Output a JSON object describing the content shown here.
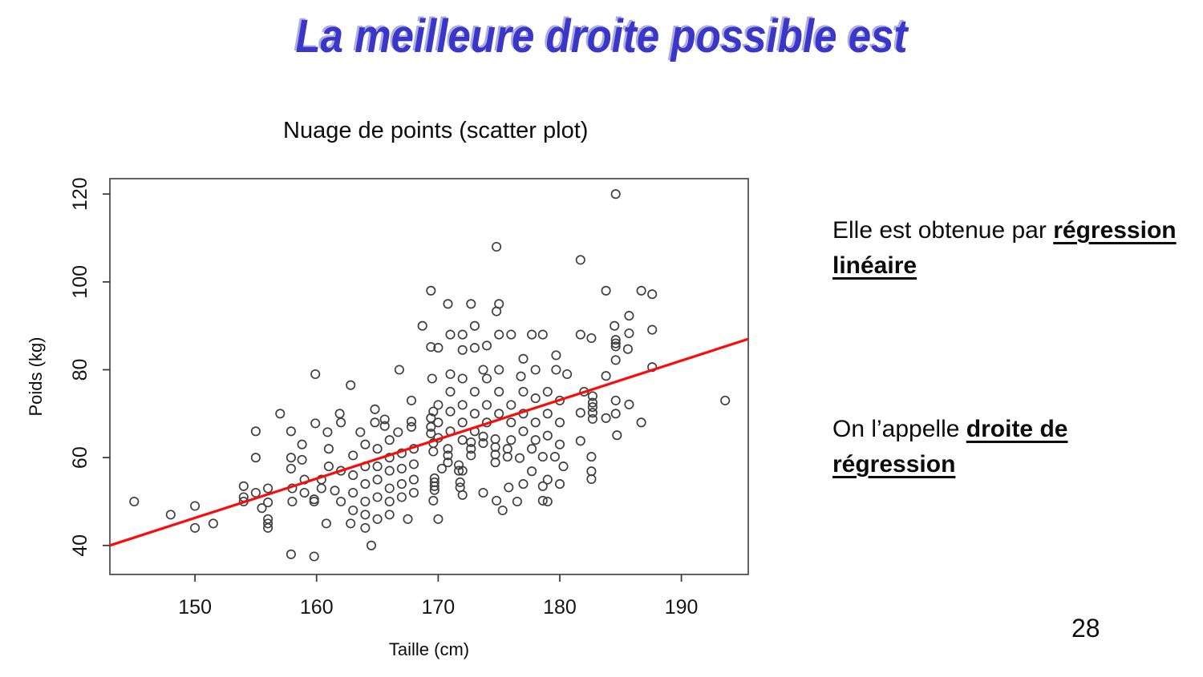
{
  "title": {
    "text": "La meilleure droite possible est",
    "color": "#3a36c8"
  },
  "page_number": "28",
  "notes": [
    {
      "text": "Elle est obtenue par",
      "emphasis": "régression linéaire"
    },
    {
      "text": "On l’appelle",
      "emphasis": "droite de régression"
    }
  ],
  "chart_data": {
    "type": "scatter",
    "title": "Nuage de points (scatter plot)",
    "xlabel": "Taille (cm)",
    "ylabel": "Poids (kg)",
    "xlim": [
      143,
      195.5
    ],
    "ylim": [
      33.4,
      123.5
    ],
    "xticks": [
      150,
      160,
      170,
      180,
      190
    ],
    "yticks": [
      40,
      60,
      80,
      100,
      120
    ],
    "grid": false,
    "legend": "none",
    "point_color": "#3f3f3f",
    "line_color": "#fb0c0c",
    "regression_line": {
      "x1": 143,
      "y1": 40,
      "x2": 195.5,
      "y2": 87
    },
    "points": [
      [
        145,
        50
      ],
      [
        148,
        47
      ],
      [
        150,
        49
      ],
      [
        150,
        44
      ],
      [
        151.5,
        45
      ],
      [
        154,
        53.5
      ],
      [
        154,
        51
      ],
      [
        154,
        50
      ],
      [
        155,
        66
      ],
      [
        155,
        60
      ],
      [
        155,
        52
      ],
      [
        155.5,
        48.5
      ],
      [
        156,
        53
      ],
      [
        156,
        49.8
      ],
      [
        156,
        46
      ],
      [
        156,
        45
      ],
      [
        156,
        44
      ],
      [
        157,
        70
      ],
      [
        157.9,
        66
      ],
      [
        157.9,
        60
      ],
      [
        157.9,
        57.5
      ],
      [
        157.9,
        38
      ],
      [
        158,
        53
      ],
      [
        158,
        50
      ],
      [
        158.8,
        63
      ],
      [
        158.8,
        59.5
      ],
      [
        159,
        55
      ],
      [
        159,
        52
      ],
      [
        159.9,
        79
      ],
      [
        159.9,
        67.8
      ],
      [
        159.8,
        50.5
      ],
      [
        159.8,
        50
      ],
      [
        159.8,
        37.5
      ],
      [
        160.4,
        55
      ],
      [
        160.4,
        53
      ],
      [
        160.8,
        45
      ],
      [
        160.9,
        65.8
      ],
      [
        161,
        62
      ],
      [
        161,
        58
      ],
      [
        161.5,
        52.5
      ],
      [
        161.9,
        70
      ],
      [
        162,
        68
      ],
      [
        162,
        57
      ],
      [
        162,
        50
      ],
      [
        162.8,
        76.5
      ],
      [
        162.8,
        45
      ],
      [
        163,
        60.5
      ],
      [
        163,
        56
      ],
      [
        163,
        52
      ],
      [
        163,
        48
      ],
      [
        163.6,
        65.8
      ],
      [
        164,
        63
      ],
      [
        164,
        58
      ],
      [
        164,
        54
      ],
      [
        164,
        50
      ],
      [
        164,
        47
      ],
      [
        164,
        44
      ],
      [
        164.5,
        40
      ],
      [
        164.8,
        71
      ],
      [
        164.8,
        68
      ],
      [
        165,
        62
      ],
      [
        165,
        58
      ],
      [
        165,
        55
      ],
      [
        165,
        51
      ],
      [
        165,
        46
      ],
      [
        165.6,
        68.7
      ],
      [
        165.6,
        67.2
      ],
      [
        166,
        64
      ],
      [
        166,
        60
      ],
      [
        166,
        57
      ],
      [
        166,
        53
      ],
      [
        166,
        50
      ],
      [
        166,
        47
      ],
      [
        166.7,
        65.8
      ],
      [
        166.8,
        80
      ],
      [
        167,
        61
      ],
      [
        167,
        57.5
      ],
      [
        167,
        54
      ],
      [
        167,
        51
      ],
      [
        167.5,
        46
      ],
      [
        167.8,
        73
      ],
      [
        167.8,
        68.2
      ],
      [
        167.8,
        67
      ],
      [
        168,
        62
      ],
      [
        168,
        58.5
      ],
      [
        168,
        55
      ],
      [
        168,
        52
      ],
      [
        168.7,
        90
      ],
      [
        169.4,
        98
      ],
      [
        169.4,
        85.2
      ],
      [
        169.5,
        78
      ],
      [
        169.6,
        70.5
      ],
      [
        169.4,
        69
      ],
      [
        169.4,
        67
      ],
      [
        169.4,
        65.5
      ],
      [
        169.6,
        63.3
      ],
      [
        169.6,
        61.4
      ],
      [
        169.7,
        55.3
      ],
      [
        169.7,
        54.4
      ],
      [
        169.7,
        53.5
      ],
      [
        169.7,
        52.6
      ],
      [
        169.6,
        50.2
      ],
      [
        170,
        85
      ],
      [
        170,
        72
      ],
      [
        170,
        68
      ],
      [
        170,
        64.5
      ],
      [
        170.3,
        57.5
      ],
      [
        170,
        46
      ],
      [
        170.8,
        95
      ],
      [
        170.8,
        62
      ],
      [
        170.8,
        60.5
      ],
      [
        170.8,
        58.9
      ],
      [
        171,
        88
      ],
      [
        171,
        79
      ],
      [
        171,
        75
      ],
      [
        171,
        70.5
      ],
      [
        171,
        66
      ],
      [
        171.7,
        58.3
      ],
      [
        171.7,
        57
      ],
      [
        171.8,
        54.4
      ],
      [
        171.8,
        53.2
      ],
      [
        172,
        88
      ],
      [
        172,
        84.5
      ],
      [
        172,
        78
      ],
      [
        172,
        72
      ],
      [
        172,
        68
      ],
      [
        172,
        64
      ],
      [
        172.7,
        95
      ],
      [
        172.7,
        63.5
      ],
      [
        172.7,
        62
      ],
      [
        172.7,
        60.5
      ],
      [
        172,
        57
      ],
      [
        172,
        51.5
      ],
      [
        173,
        90
      ],
      [
        173,
        85
      ],
      [
        173,
        75
      ],
      [
        173,
        70
      ],
      [
        173,
        66
      ],
      [
        173.7,
        80
      ],
      [
        173.7,
        64.8
      ],
      [
        173.7,
        63.3
      ],
      [
        173.7,
        52
      ],
      [
        174,
        85.5
      ],
      [
        174,
        78
      ],
      [
        174,
        72
      ],
      [
        174,
        68
      ],
      [
        174.7,
        64.2
      ],
      [
        174.7,
        62.4
      ],
      [
        174.7,
        60.7
      ],
      [
        174.7,
        58.9
      ],
      [
        174.8,
        108
      ],
      [
        174.8,
        93.3
      ],
      [
        174.8,
        50.2
      ],
      [
        175,
        95
      ],
      [
        175,
        88
      ],
      [
        175,
        80
      ],
      [
        175,
        75
      ],
      [
        175,
        70
      ],
      [
        175.7,
        62
      ],
      [
        175.7,
        60.2
      ],
      [
        175.8,
        53.2
      ],
      [
        175.3,
        48
      ],
      [
        176,
        88
      ],
      [
        176,
        72
      ],
      [
        176,
        68
      ],
      [
        176,
        64
      ],
      [
        176.7,
        59.9
      ],
      [
        176.8,
        78.5
      ],
      [
        176.5,
        50
      ],
      [
        177,
        82.5
      ],
      [
        177,
        75
      ],
      [
        177,
        70
      ],
      [
        177,
        66
      ],
      [
        177.7,
        88
      ],
      [
        177.7,
        62
      ],
      [
        177.7,
        56.9
      ],
      [
        177,
        54
      ],
      [
        178,
        80
      ],
      [
        178,
        73.5
      ],
      [
        178,
        68
      ],
      [
        178,
        64
      ],
      [
        178.6,
        88
      ],
      [
        178.6,
        60.2
      ],
      [
        178.6,
        53.5
      ],
      [
        178.6,
        50.2
      ],
      [
        179,
        75
      ],
      [
        179,
        70
      ],
      [
        179,
        65
      ],
      [
        179,
        55
      ],
      [
        179.7,
        83.3
      ],
      [
        179.7,
        80
      ],
      [
        179.6,
        60.2
      ],
      [
        179,
        50
      ],
      [
        180,
        73
      ],
      [
        180,
        68
      ],
      [
        180,
        63
      ],
      [
        180.3,
        58
      ],
      [
        180.6,
        79
      ],
      [
        180,
        54
      ],
      [
        181.7,
        105
      ],
      [
        181.7,
        88
      ],
      [
        181.7,
        70.2
      ],
      [
        181.7,
        63.8
      ],
      [
        182,
        75
      ],
      [
        182.6,
        87.2
      ],
      [
        182.6,
        60.2
      ],
      [
        182.6,
        56.9
      ],
      [
        182.6,
        55.1
      ],
      [
        182.7,
        74
      ],
      [
        182.7,
        72.5
      ],
      [
        182.7,
        71.5
      ],
      [
        182.7,
        70.2
      ],
      [
        182.7,
        68.8
      ],
      [
        183.8,
        98
      ],
      [
        183.8,
        78.6
      ],
      [
        183.8,
        69
      ],
      [
        184.5,
        90
      ],
      [
        184.6,
        120
      ],
      [
        184.6,
        86.8
      ],
      [
        184.6,
        86
      ],
      [
        184.6,
        85.3
      ],
      [
        184.6,
        82.2
      ],
      [
        184.6,
        73
      ],
      [
        184.6,
        70
      ],
      [
        184.7,
        65.1
      ],
      [
        185.6,
        84.7
      ],
      [
        185.7,
        92.3
      ],
      [
        185.7,
        88.3
      ],
      [
        185.7,
        72.1
      ],
      [
        186.7,
        98
      ],
      [
        186.7,
        68
      ],
      [
        187.6,
        97.2
      ],
      [
        187.6,
        89.1
      ],
      [
        187.6,
        80.6
      ],
      [
        193.6,
        73
      ]
    ]
  }
}
